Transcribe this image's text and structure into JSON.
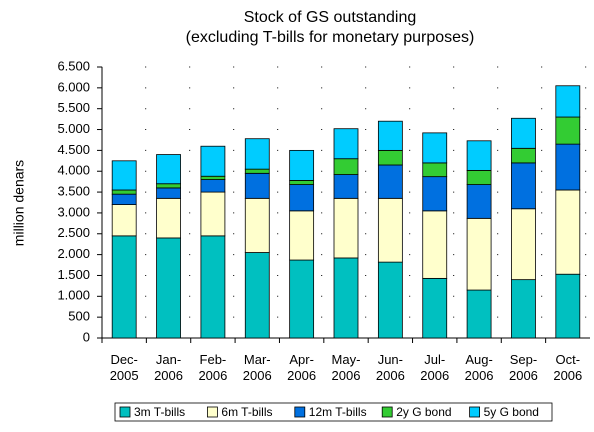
{
  "chart_data": {
    "type": "stacked_bar",
    "title": "Stock of GS outstanding",
    "subtitle": "(excluding T-bills for monetary purposes)",
    "y_label": "million denars",
    "categories": [
      "Dec-2005",
      "Jan-2006",
      "Feb-2006",
      "Mar-2006",
      "Apr-2006",
      "May-2006",
      "Jun-2006",
      "Jul-2006",
      "Aug-2006",
      "Sep-2006",
      "Oct-2006"
    ],
    "series": [
      {
        "name": "3m T-bills",
        "color": "#00c0c0",
        "values": [
          2450,
          2400,
          2450,
          2050,
          1870,
          1920,
          1820,
          1430,
          1150,
          1400,
          1530
        ]
      },
      {
        "name": "6m T-bills",
        "color": "#ffffcc",
        "values": [
          750,
          950,
          1050,
          1300,
          1180,
          1430,
          1530,
          1620,
          1720,
          1700,
          2020
        ]
      },
      {
        "name": "12m T-bills",
        "color": "#0070e0",
        "values": [
          250,
          250,
          300,
          600,
          630,
          570,
          800,
          820,
          810,
          1100,
          1100
        ]
      },
      {
        "name": "2y G bond",
        "color": "#33cc33",
        "values": [
          100,
          100,
          80,
          100,
          100,
          380,
          350,
          330,
          340,
          350,
          650
        ]
      },
      {
        "name": "5y G bond",
        "color": "#00ccff",
        "values": [
          700,
          700,
          720,
          730,
          720,
          720,
          700,
          720,
          710,
          720,
          750
        ]
      }
    ],
    "ylim": [
      0,
      6500
    ],
    "yticks": [
      0,
      500,
      {
        "value": 1000,
        "label": "1.000"
      },
      {
        "value": 1500,
        "label": "1.500"
      },
      {
        "value": 2000,
        "label": "2.000"
      },
      {
        "value": 2500,
        "label": "2.500"
      },
      {
        "value": 3000,
        "label": "3.000"
      },
      {
        "value": 3500,
        "label": "3.500"
      },
      {
        "value": 4000,
        "label": "4.000"
      },
      {
        "value": 4500,
        "label": "4.500"
      },
      {
        "value": 5000,
        "label": "5.000"
      },
      {
        "value": 5500,
        "label": "5.500"
      },
      {
        "value": 6000,
        "label": "6.000"
      },
      {
        "value": 6500,
        "label": "6.500"
      }
    ],
    "grid": true,
    "legend": "bottom"
  }
}
